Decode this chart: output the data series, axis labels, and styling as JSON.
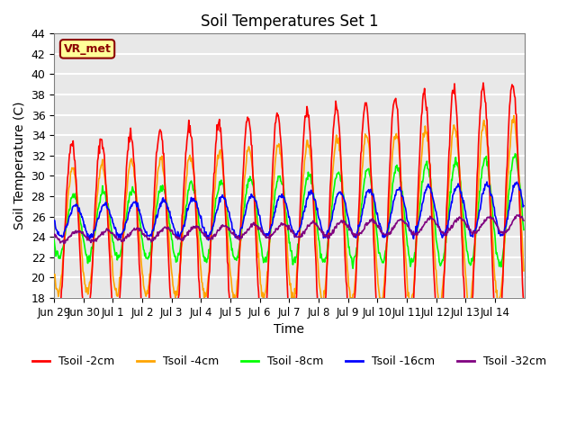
{
  "title": "Soil Temperatures Set 1",
  "xlabel": "Time",
  "ylabel": "Soil Temperature (C)",
  "ylim": [
    18,
    44
  ],
  "yticks": [
    18,
    20,
    22,
    24,
    26,
    28,
    30,
    32,
    34,
    36,
    38,
    40,
    42,
    44
  ],
  "bg_color": "#e8e8e8",
  "grid_color": "white",
  "series_colors": [
    "red",
    "orange",
    "lime",
    "blue",
    "purple"
  ],
  "series_labels": [
    "Tsoil -2cm",
    "Tsoil -4cm",
    "Tsoil -8cm",
    "Tsoil -16cm",
    "Tsoil -32cm"
  ],
  "legend_label": "VR_met",
  "legend_bg": "#ffff99",
  "legend_border": "darkred",
  "n_days": 16,
  "dt_hours": 0.5,
  "xtick_labels": [
    "Jun 29",
    "Jun 30",
    "Jul 1",
    "Jul 2",
    "Jul 3",
    "Jul 4",
    "Jul 5",
    "Jul 6",
    "Jul 7",
    "Jul 8",
    "Jul 9",
    "Jul 10",
    "Jul 11",
    "Jul 12",
    "Jul 13",
    "Jul 14"
  ],
  "linewidth": 1.2
}
